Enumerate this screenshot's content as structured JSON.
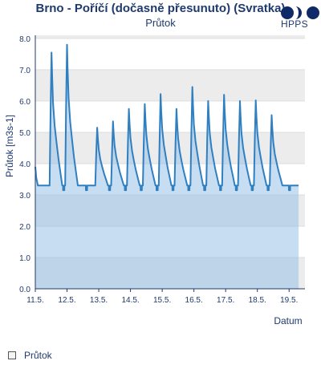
{
  "header": {
    "title": "Brno - Poříčí (dočasně přesunuto) (Svratka)",
    "subtitle": "Průtok"
  },
  "logo": {
    "text": "HPPS",
    "colors": [
      "#0f2a66",
      "#0f2a66",
      "#0f2a66"
    ]
  },
  "legend": {
    "items": [
      {
        "label": "Průtok"
      }
    ]
  },
  "colors": {
    "line": "#2f7fc1",
    "fill": "#8fbce6",
    "fill_opacity": 0.5,
    "band": "#ececec",
    "axis": "#1f3a6e",
    "grid": "#dddddd"
  },
  "chart_data": {
    "type": "area",
    "title": "Brno - Poříčí (dočasně přesunuto) (Svratka)",
    "subtitle": "Průtok",
    "xlabel": "Datum",
    "ylabel": "Průtok [m3s-1]",
    "ylim": [
      0,
      8.1
    ],
    "yticks": [
      0.0,
      1.0,
      2.0,
      3.0,
      4.0,
      5.0,
      6.0,
      7.0,
      8.0
    ],
    "ytick_labels": [
      "0.0",
      "1.0",
      "2.0",
      "3.0",
      "4.0",
      "5.0",
      "6.0",
      "7.0",
      "8.0"
    ],
    "xlim": [
      11.0,
      19.5
    ],
    "xticks": [
      11.0,
      12.0,
      13.0,
      14.0,
      15.0,
      16.0,
      17.0,
      18.0,
      19.0
    ],
    "xtick_labels": [
      "11.5.",
      "12.5.",
      "13.5.",
      "14.5.",
      "15.5.",
      "16.5.",
      "17.5.",
      "18.5.",
      "19.5."
    ],
    "grid": true,
    "legend_position": "bottom-left",
    "series": [
      {
        "name": "Průtok",
        "baseline": 3.3,
        "start": [
          11.0,
          3.9
        ],
        "peaks": [
          {
            "day": 11.51,
            "value": 7.55
          },
          {
            "day": 12.0,
            "value": 7.8
          },
          {
            "day": 12.95,
            "value": 5.15
          },
          {
            "day": 13.45,
            "value": 5.35
          },
          {
            "day": 13.95,
            "value": 5.75
          },
          {
            "day": 14.45,
            "value": 5.9
          },
          {
            "day": 14.95,
            "value": 6.22
          },
          {
            "day": 15.45,
            "value": 5.75
          },
          {
            "day": 15.95,
            "value": 6.45
          },
          {
            "day": 16.45,
            "value": 6.0
          },
          {
            "day": 16.95,
            "value": 6.2
          },
          {
            "day": 17.45,
            "value": 6.0
          },
          {
            "day": 17.95,
            "value": 6.02
          },
          {
            "day": 18.45,
            "value": 5.55
          }
        ],
        "end": [
          19.3,
          3.3
        ]
      }
    ]
  }
}
